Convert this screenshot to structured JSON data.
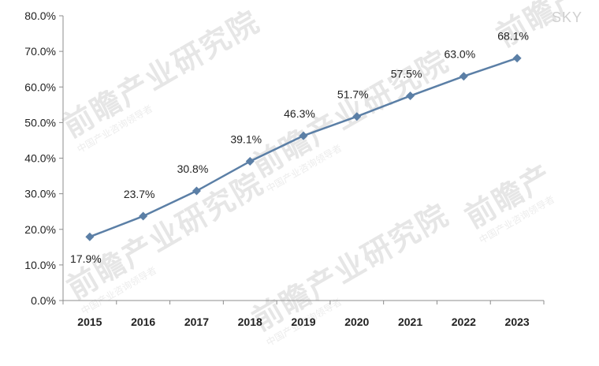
{
  "chart_data": {
    "type": "line",
    "categories": [
      "2015",
      "2016",
      "2017",
      "2018",
      "2019",
      "2020",
      "2021",
      "2022",
      "2023"
    ],
    "series": [
      {
        "values": [
          17.9,
          23.7,
          30.8,
          39.1,
          46.3,
          51.7,
          57.5,
          63.0,
          68.1
        ],
        "labels": [
          "17.9%",
          "23.7%",
          "30.8%",
          "39.1%",
          "46.3%",
          "51.7%",
          "57.5%",
          "63.0%",
          "68.1%"
        ],
        "color": "#5b7fa6",
        "marker": "diamond"
      }
    ],
    "ylim": [
      0,
      80
    ],
    "yticks": [
      0,
      10,
      20,
      30,
      40,
      50,
      60,
      70,
      80
    ],
    "ytick_labels": [
      "0.0%",
      "10.0%",
      "20.0%",
      "30.0%",
      "40.0%",
      "50.0%",
      "60.0%",
      "70.0%",
      "80.0%"
    ],
    "grid": false,
    "legend": "none"
  },
  "watermark": {
    "brand": "前瞻产业研究院",
    "brand_short": "前瞻产",
    "sub": "中国产业咨询领导者",
    "tag": "SKY"
  }
}
